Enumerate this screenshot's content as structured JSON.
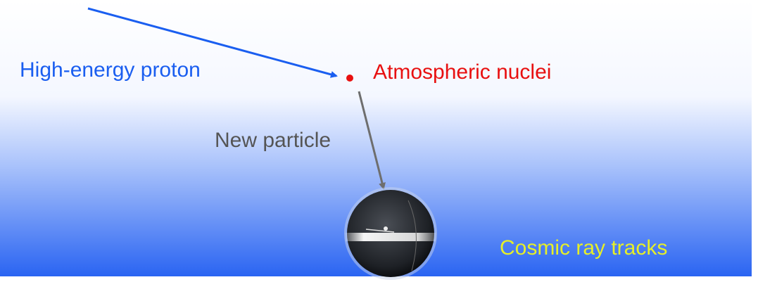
{
  "labels": {
    "proton": "High-energy proton",
    "nucleus": "Atmospheric nuclei",
    "new_particle": "New particle",
    "tracks": "Cosmic ray tracks"
  }
}
